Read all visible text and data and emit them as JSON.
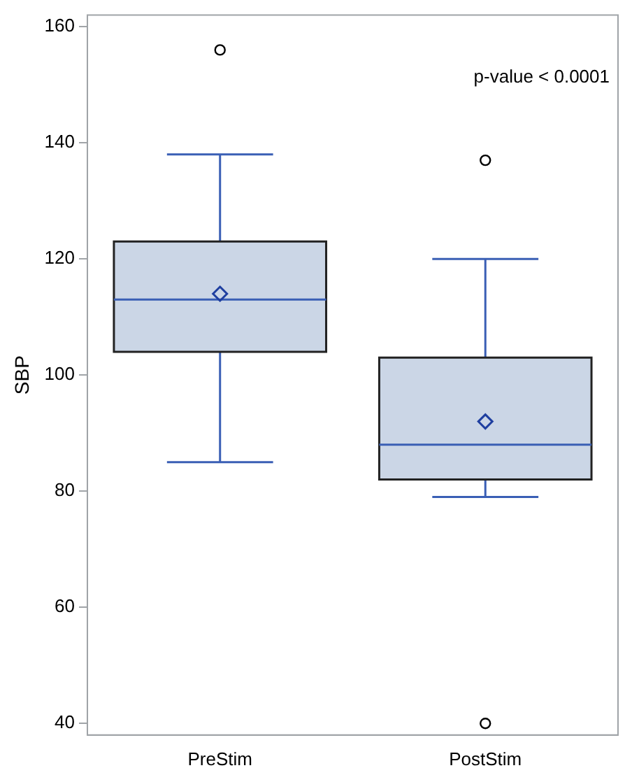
{
  "chart_data": {
    "type": "box",
    "ylabel": "SBP",
    "categories": [
      "PreStim",
      "PostStim"
    ],
    "boxes": [
      {
        "low": 85,
        "q1": 104,
        "median": 113,
        "q3": 123,
        "high": 138,
        "mean": 114,
        "outliers": [
          156
        ]
      },
      {
        "low": 79,
        "q1": 82,
        "median": 88,
        "q3": 103,
        "high": 120,
        "mean": 92,
        "outliers": [
          137,
          40
        ]
      }
    ],
    "color": "#cbd6e6",
    "ylim": [
      38,
      162
    ],
    "yticks": [
      40,
      60,
      80,
      100,
      120,
      140,
      160
    ],
    "grid": false,
    "annotations": [
      "p-value < 0.0001"
    ]
  }
}
